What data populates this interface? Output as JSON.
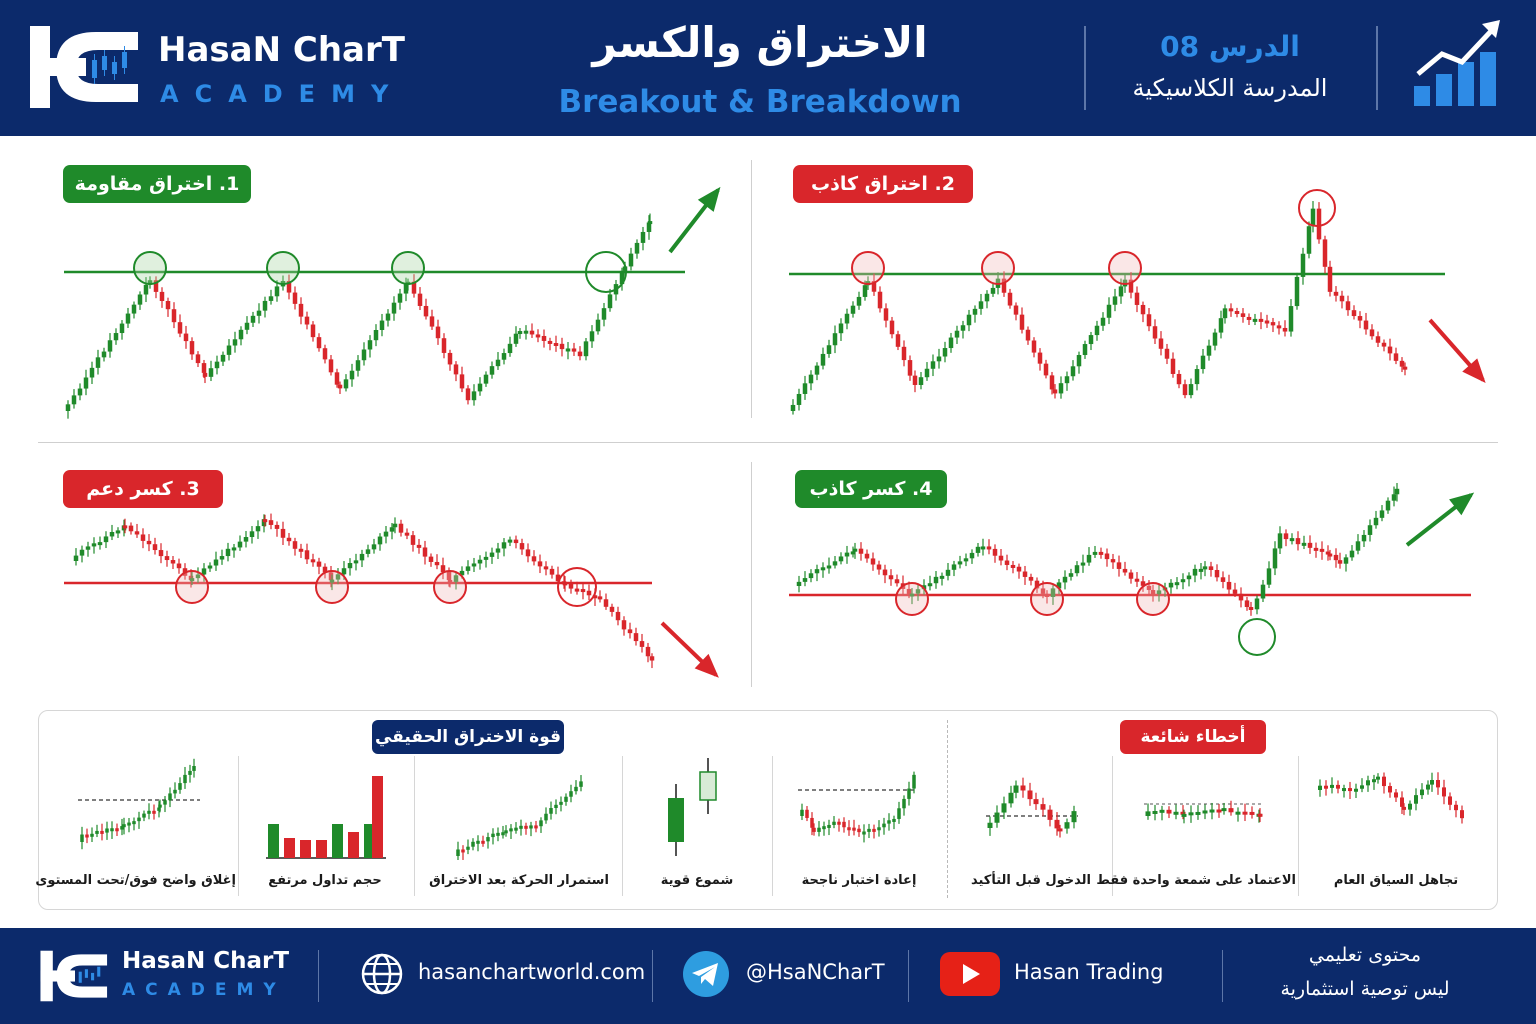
{
  "header": {
    "brand_name": "HasaN CharT",
    "brand_sub": "ACADEMY",
    "logo_letters": "HC",
    "title_ar": "الاختراق والكسر",
    "title_en": "Breakout & Breakdown",
    "lesson_number": "الدرس 08",
    "lesson_school": "المدرسة الكلاسيكية",
    "icon": "growth-chart-icon"
  },
  "panels": [
    {
      "label": "1. اختراق مقاومة",
      "color": "#1f8a2a",
      "scenario": "resistance-breakout",
      "direction": "up"
    },
    {
      "label": "2. اختراق كاذب",
      "color": "#d9262b",
      "scenario": "false-breakout",
      "direction": "down"
    },
    {
      "label": "3. كسر دعم",
      "color": "#d9262b",
      "scenario": "support-breakdown",
      "direction": "down"
    },
    {
      "label": "4. كسر كاذب",
      "color": "#1f8a2a",
      "scenario": "false-breakdown",
      "direction": "up"
    }
  ],
  "strength_section": {
    "title": "قوة الاختراق الحقيقي",
    "items": [
      {
        "caption": "إغلاق واضح فوق/تحت المستوى",
        "icon": "clear-close-icon"
      },
      {
        "caption": "حجم تداول مرتفع",
        "icon": "volume-bars-icon"
      },
      {
        "caption": "استمرار الحركة بعد الاختراق",
        "icon": "trend-continuation-icon"
      },
      {
        "caption": "شموع قوية",
        "icon": "strong-candles-icon"
      },
      {
        "caption": "إعادة اختبار ناجحة",
        "icon": "retest-icon"
      }
    ]
  },
  "mistakes_section": {
    "title": "أخطاء شائعة",
    "items": [
      {
        "caption": "الدخول قبل التأكيد",
        "icon": "early-entry-icon"
      },
      {
        "caption": "الاعتماد على شمعة واحدة فقط",
        "icon": "single-candle-icon"
      },
      {
        "caption": "تجاهل السياق العام",
        "icon": "ignore-context-icon"
      }
    ]
  },
  "footer": {
    "brand_name": "HasaN CharT",
    "brand_sub": "ACADEMY",
    "website": "hasanchartworld.com",
    "telegram": "@HsaNCharT",
    "youtube": "Hasan Trading",
    "disclaimer_1": "محتوى تعليمي",
    "disclaimer_2": "ليس توصية استثمارية"
  },
  "colors": {
    "navy": "#0c2a6b",
    "accent_blue": "#2e8be6",
    "bull_green": "#1f8a2a",
    "bear_red": "#d9262b"
  }
}
